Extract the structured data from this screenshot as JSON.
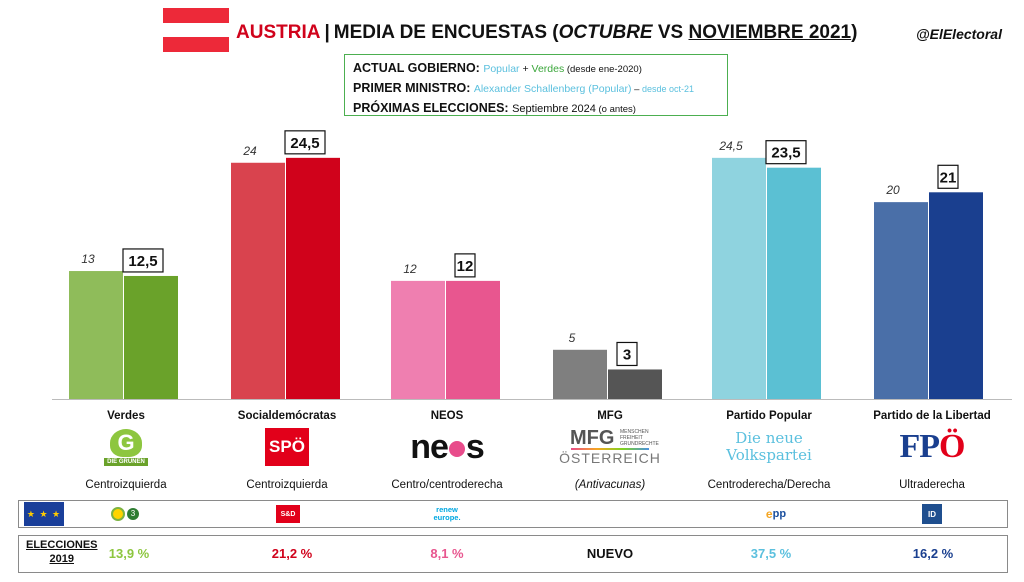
{
  "header": {
    "country": "AUSTRIA",
    "separator": "|",
    "title_pre": "MEDIA DE ENCUESTAS (",
    "title_month_a": "OCTUBRE",
    "title_vs": " VS ",
    "title_month_b": "NOVIEMBRE 2021",
    "title_post": ")",
    "handle": "@ElElectoral",
    "flag_colors": [
      "#ed2939",
      "#ffffff",
      "#ed2939"
    ]
  },
  "info": {
    "gov_label": "ACTUAL GOBIERNO:",
    "gov_party1": "Popular",
    "gov_plus": " + ",
    "gov_party2": "Verdes",
    "gov_since": " (desde ene-2020)",
    "pm_label": "PRIMER MINISTRO:",
    "pm_name": "Alexander Schallenberg (Popular)",
    "pm_dash": " – ",
    "pm_since": "desde oct-21",
    "elec_label": "PRÓXIMAS ELECCIONES:",
    "elec_date": "Septiembre 2024",
    "elec_note": " (o antes)"
  },
  "chart_data": {
    "type": "bar",
    "categories": [
      "Verdes",
      "Socialdemócratas",
      "NEOS",
      "MFG",
      "Partido Popular",
      "Partido de la Libertad"
    ],
    "series": [
      {
        "name": "Octubre",
        "values": [
          13,
          24,
          12,
          5,
          24.5,
          20
        ],
        "labels": [
          "13",
          "24",
          "12",
          "5",
          "24,5",
          "20"
        ]
      },
      {
        "name": "Noviembre",
        "values": [
          12.5,
          24.5,
          12,
          3,
          23.5,
          21
        ],
        "labels": [
          "12,5",
          "24,5",
          "12",
          "3",
          "23,5",
          "21"
        ]
      }
    ],
    "ylim": [
      0,
      25.5
    ],
    "grid": false,
    "colors_oct": [
      "#8fbc5a",
      "#d9434e",
      "#ef7fb0",
      "#7f7f7f",
      "#8fd3df",
      "#4a6fa8"
    ],
    "colors_nov": [
      "#6aa22a",
      "#d0021b",
      "#e8568f",
      "#555555",
      "#5bc0d3",
      "#1a3f8f"
    ]
  },
  "parties": [
    {
      "name": "Verdes",
      "ideology": "Centroizquierda",
      "logo_text": "G",
      "logo_tag": "DIE GRÜNEN",
      "eu_group": "greens-efa",
      "eu_group_text": "3",
      "elections_2019": "13,9 %",
      "color": "#8dc63f"
    },
    {
      "name": "Socialdemócratas",
      "ideology": "Centroizquierda",
      "logo_text": "SPÖ",
      "eu_group": "s-and-d",
      "eu_group_text": "S&D",
      "elections_2019": "21,2 %",
      "color": "#d0021b"
    },
    {
      "name": "NEOS",
      "ideology": "Centro/centroderecha",
      "logo_text_a": "ne",
      "logo_text_b": "s",
      "eu_group": "renew-europe",
      "eu_group_text_a": "renew",
      "eu_group_text_b": "europe.",
      "elections_2019": "8,1 %",
      "color": "#e8568f"
    },
    {
      "name": "MFG",
      "ideology": "(Antivacunas)",
      "logo_text": "MFG",
      "logo_small": "MENSCHEN FREIHEIT GRUNDRECHTE",
      "logo_bottom": "ÖSTERREICH",
      "elections_2019": "NUEVO",
      "color": "#111111"
    },
    {
      "name": "Partido Popular",
      "ideology": "Centroderecha/Derecha",
      "logo_line1": "Die neue",
      "logo_line2": "Volkspartei",
      "eu_group": "epp",
      "eu_group_text_a": "e",
      "eu_group_text_b": "pp",
      "elections_2019": "37,5 %",
      "color": "#5bc0de"
    },
    {
      "name": "Partido de la Libertad",
      "ideology": "Ultraderecha",
      "logo_text_f": "FP",
      "logo_text_o": "Ö",
      "eu_group": "identity-and-democracy",
      "eu_group_text": "ID",
      "elections_2019": "16,2 %",
      "color": "#1a3f8f"
    }
  ],
  "eu_flag_text": "★ ★ ★",
  "elections_label_1": "ELECCIONES",
  "elections_label_2": "2019"
}
